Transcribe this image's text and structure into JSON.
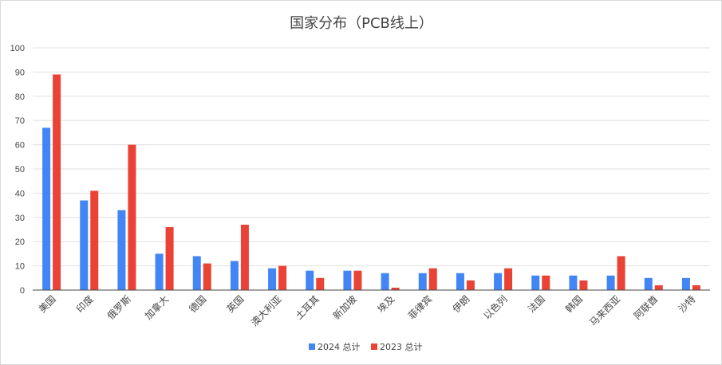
{
  "chart_data": {
    "type": "bar",
    "title": "国家分布（PCB线上）",
    "categories": [
      "美国",
      "印度",
      "俄罗斯",
      "加拿大",
      "德国",
      "英国",
      "澳大利亚",
      "土耳其",
      "新加坡",
      "埃及",
      "菲律宾",
      "伊朗",
      "以色列",
      "法国",
      "韩国",
      "马来西亚",
      "阿联酋",
      "沙特"
    ],
    "series": [
      {
        "name": "2024 总计",
        "color": "#4285f4",
        "values": [
          67,
          37,
          33,
          15,
          14,
          12,
          9,
          8,
          8,
          7,
          7,
          7,
          7,
          6,
          6,
          6,
          5,
          5
        ]
      },
      {
        "name": "2023 总计",
        "color": "#ea4335",
        "values": [
          89,
          41,
          60,
          26,
          11,
          27,
          10,
          5,
          8,
          1,
          9,
          4,
          9,
          6,
          4,
          14,
          2,
          2
        ]
      }
    ],
    "yticks": [
      0,
      10,
      20,
      30,
      40,
      50,
      60,
      70,
      80,
      90,
      100
    ],
    "ylim": [
      0,
      100
    ],
    "grid": true,
    "legend": "bottom"
  }
}
